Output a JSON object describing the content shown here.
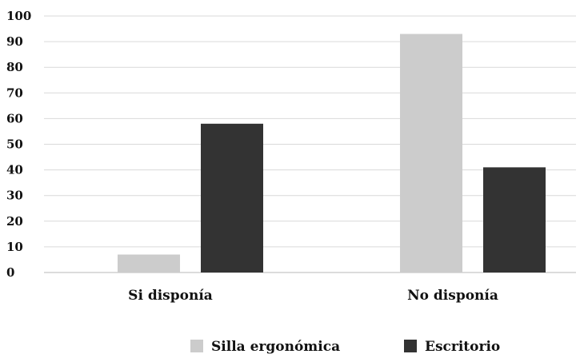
{
  "chart_data": {
    "type": "bar",
    "title": "",
    "xlabel": "",
    "ylabel": "",
    "categories": [
      "Si disponía",
      "No disponía"
    ],
    "series": [
      {
        "name": "Silla ergonómica",
        "color": "#cccccc",
        "values": [
          7,
          93
        ]
      },
      {
        "name": "Escritorio",
        "color": "#333333",
        "values": [
          58,
          41
        ]
      }
    ],
    "ylim": [
      0,
      100
    ],
    "yticks": [
      "0",
      "10",
      "20",
      "30",
      "40",
      "50",
      "60",
      "70",
      "80",
      "90",
      "100"
    ],
    "grid": true,
    "legend_position": "bottom"
  }
}
